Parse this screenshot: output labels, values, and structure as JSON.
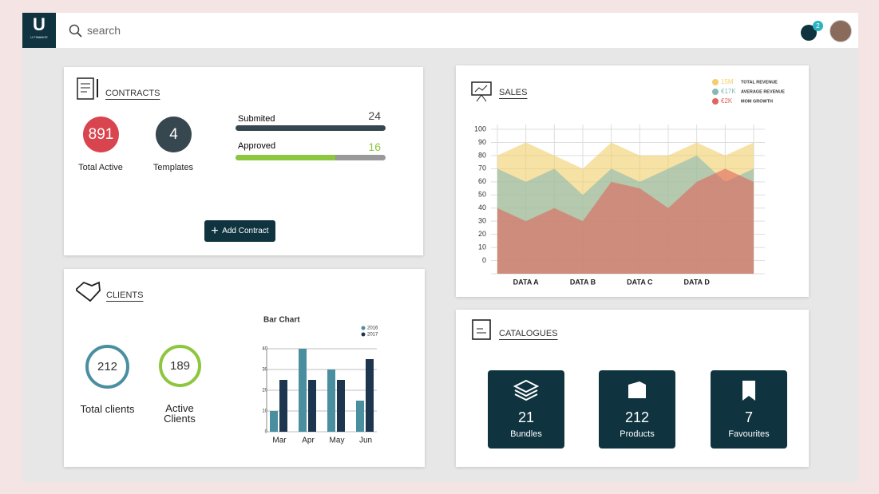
{
  "logo": {
    "letter": "U",
    "name": "U FINANCE"
  },
  "topbar": {
    "search_placeholder": "search",
    "notifications": 2
  },
  "contracts": {
    "title": "CONTRACTS",
    "stats": [
      {
        "value": 891,
        "label": "Total Active",
        "color": "#d9454f"
      },
      {
        "value": 4,
        "label": "Templates",
        "color": "#37474f"
      }
    ],
    "progress": [
      {
        "label": "Submited",
        "value": 24,
        "color": "#37474f"
      },
      {
        "label": "Approved",
        "value": 16,
        "color": "#8dc63f"
      }
    ],
    "button": "Add Contract"
  },
  "clients": {
    "title": "CLIENTS",
    "stats": [
      {
        "value": 212,
        "label": "Total clients",
        "color": "#4a8fa0"
      },
      {
        "value": 189,
        "label": "Active Clients",
        "color": "#8dc63f"
      }
    ],
    "bar_chart": {
      "type": "bar",
      "title": "Bar Chart",
      "categories": [
        "Mar",
        "Apr",
        "May",
        "Jun"
      ],
      "series": [
        {
          "name": "2016",
          "color": "#4a8fa0",
          "values": [
            10,
            40,
            30,
            15
          ]
        },
        {
          "name": "2017",
          "color": "#1e3550",
          "values": [
            25,
            25,
            25,
            35
          ]
        }
      ],
      "ylim": [
        0,
        40
      ],
      "yticks": [
        0,
        10,
        20,
        30,
        40
      ],
      "grid": true
    }
  },
  "sales": {
    "title": "SALES",
    "chart": {
      "type": "area",
      "categories": [
        null,
        "DATA A",
        null,
        "DATA B",
        null,
        "DATA C",
        null,
        "DATA D",
        null,
        null
      ],
      "series": [
        {
          "name": "TOTAL REVENUE",
          "legend_value": "15M",
          "color": "#f2cf6b",
          "values": [
            80,
            90,
            80,
            70,
            90,
            80,
            80,
            90,
            80,
            90
          ]
        },
        {
          "name": "AVERAGE REVENUE",
          "legend_value": "€17K",
          "color": "#87b9b3",
          "values": [
            70,
            60,
            70,
            50,
            70,
            60,
            70,
            80,
            60,
            70
          ]
        },
        {
          "name": "MOM GROWTH",
          "legend_value": "€2K",
          "color": "#e0655c",
          "values": [
            40,
            30,
            40,
            30,
            60,
            55,
            40,
            60,
            70,
            60
          ]
        }
      ],
      "ylim": [
        -10,
        100
      ],
      "yticks": [
        0,
        10,
        20,
        30,
        40,
        50,
        60,
        70,
        80,
        90,
        100
      ],
      "grid": true
    }
  },
  "catalogues": {
    "title": "CATALOGUES",
    "tiles": [
      {
        "value": 21,
        "label": "Bundles"
      },
      {
        "value": 212,
        "label": "Products"
      },
      {
        "value": 7,
        "label": "Favourites"
      }
    ]
  }
}
